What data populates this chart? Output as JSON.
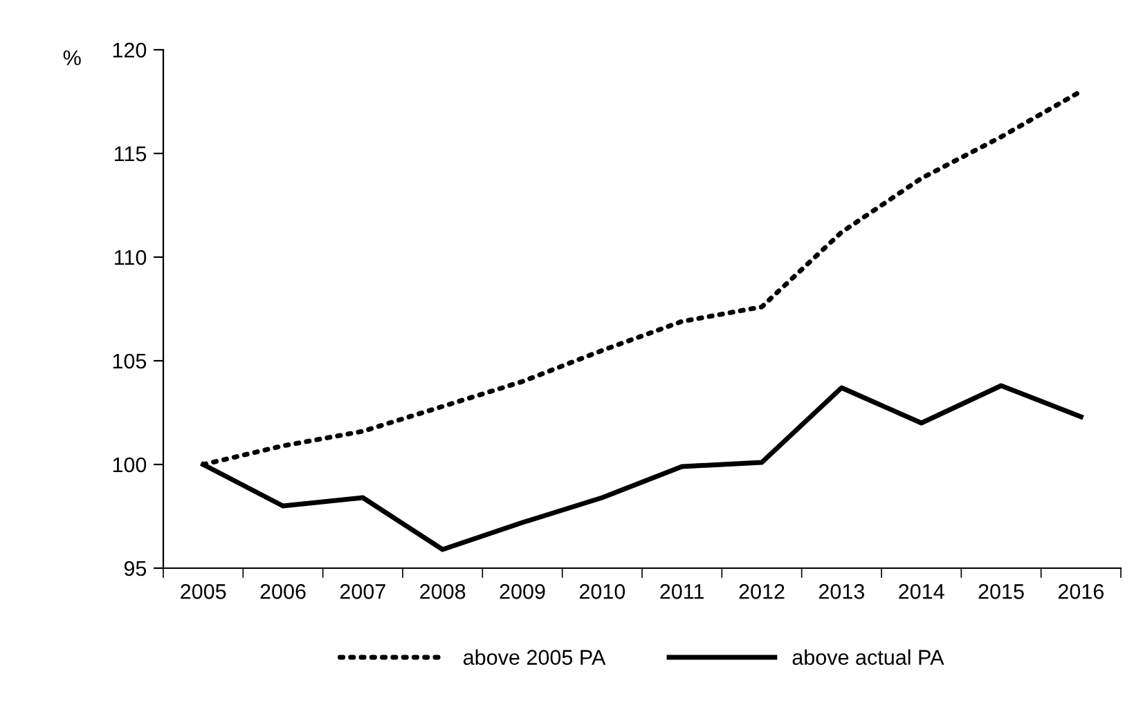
{
  "chart_data": {
    "type": "line",
    "ylabel": "%",
    "categories": [
      "2005",
      "2006",
      "2007",
      "2008",
      "2009",
      "2010",
      "2011",
      "2012",
      "2013",
      "2014",
      "2015",
      "2016"
    ],
    "series": [
      {
        "name": "above 2005 PA",
        "color": "#000000",
        "line_style": "dotted",
        "values": [
          100,
          100.9,
          101.6,
          102.8,
          104.0,
          105.5,
          106.9,
          107.6,
          111.2,
          113.8,
          115.8,
          118.0
        ]
      },
      {
        "name": "above actual PA",
        "color": "#000000",
        "line_style": "solid",
        "values": [
          100,
          98.0,
          98.4,
          95.9,
          97.2,
          98.4,
          99.9,
          100.1,
          103.7,
          102.0,
          103.8,
          102.3
        ]
      }
    ],
    "ylim": [
      95,
      120
    ],
    "yticks": [
      95,
      100,
      105,
      110,
      115,
      120
    ],
    "grid": false,
    "legend": "bottom",
    "marker": "none"
  }
}
